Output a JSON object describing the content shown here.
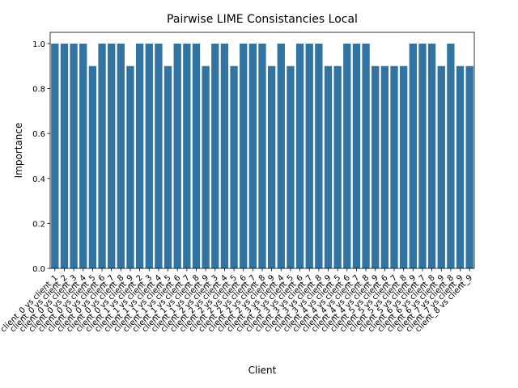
{
  "chart_data": {
    "type": "bar",
    "title": "Pairwise LIME Consistancies Local",
    "xlabel": "Client",
    "ylabel": "Importance",
    "ylim": [
      0,
      1.05
    ],
    "yticks": [
      "0.0",
      "0.2",
      "0.4",
      "0.6",
      "0.8",
      "1.0"
    ],
    "grid": false,
    "bar_color": "#3274a1",
    "categories": [
      "client_0 vs client_1",
      "client_0 vs client_2",
      "client_0 vs client_3",
      "client_0 vs client_4",
      "client_0 vs client_5",
      "client_0 vs client_6",
      "client_0 vs client_7",
      "client_0 vs client_8",
      "client_0 vs client_9",
      "client_1 vs client_2",
      "client_1 vs client_3",
      "client_1 vs client_4",
      "client_1 vs client_5",
      "client_1 vs client_6",
      "client_1 vs client_7",
      "client_1 vs client_8",
      "client_1 vs client_9",
      "client_2 vs client_3",
      "client_2 vs client_4",
      "client_2 vs client_5",
      "client_2 vs client_6",
      "client_2 vs client_7",
      "client_2 vs client_8",
      "client_2 vs client_9",
      "client_3 vs client_4",
      "client_3 vs client_5",
      "client_3 vs client_6",
      "client_3 vs client_7",
      "client_3 vs client_8",
      "client_3 vs client_9",
      "client_4 vs client_5",
      "client_4 vs client_6",
      "client_4 vs client_7",
      "client_4 vs client_8",
      "client_4 vs client_9",
      "client_5 vs client_6",
      "client_5 vs client_7",
      "client_5 vs client_8",
      "client_5 vs client_9",
      "client_6 vs client_7",
      "client_6 vs client_8",
      "client_6 vs client_9",
      "client_7 vs client_8",
      "client_7 vs client_9",
      "client_8 vs client_9"
    ],
    "values": [
      1.0,
      1.0,
      1.0,
      1.0,
      0.9,
      1.0,
      1.0,
      1.0,
      0.9,
      1.0,
      1.0,
      1.0,
      0.9,
      1.0,
      1.0,
      1.0,
      0.9,
      1.0,
      1.0,
      0.9,
      1.0,
      1.0,
      1.0,
      0.9,
      1.0,
      0.9,
      1.0,
      1.0,
      1.0,
      0.9,
      0.9,
      1.0,
      1.0,
      1.0,
      0.9,
      0.9,
      0.9,
      0.9,
      1.0,
      1.0,
      1.0,
      0.9,
      1.0,
      0.9,
      0.9
    ]
  }
}
